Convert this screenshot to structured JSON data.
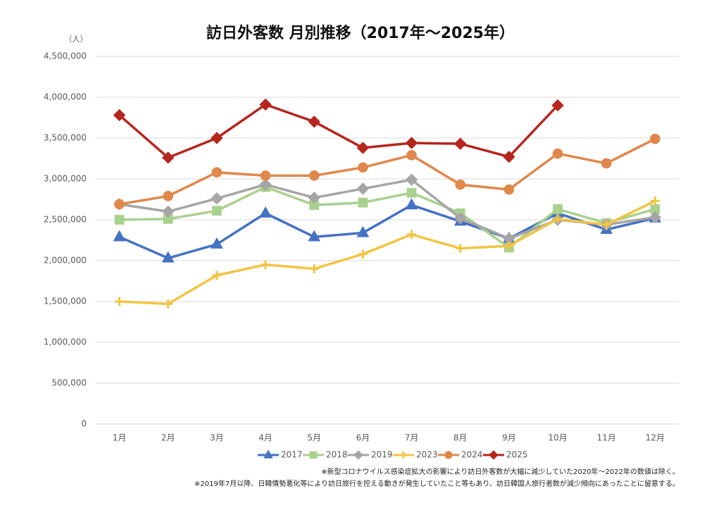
{
  "chart_data": {
    "type": "line",
    "title": "訪日外客数 月別推移（2017年～2025年）",
    "y_axis_label": "（人）",
    "categories": [
      "1月",
      "2月",
      "3月",
      "4月",
      "5月",
      "6月",
      "7月",
      "8月",
      "9月",
      "10月",
      "11月",
      "12月"
    ],
    "series": [
      {
        "name": "2017",
        "color": "#4472c4",
        "marker": "triangle",
        "values": [
          2290000,
          2030000,
          2200000,
          2580000,
          2290000,
          2340000,
          2680000,
          2480000,
          2270000,
          2580000,
          2380000,
          2520000
        ]
      },
      {
        "name": "2018",
        "color": "#a9d18e",
        "marker": "square",
        "values": [
          2500000,
          2510000,
          2610000,
          2900000,
          2680000,
          2710000,
          2830000,
          2580000,
          2160000,
          2630000,
          2460000,
          2630000
        ]
      },
      {
        "name": "2019",
        "color": "#a5a5a5",
        "marker": "diamond",
        "values": [
          2690000,
          2600000,
          2760000,
          2930000,
          2770000,
          2880000,
          2990000,
          2520000,
          2270000,
          2500000,
          2440000,
          2530000
        ]
      },
      {
        "name": "2023",
        "color": "#f2c443",
        "marker": "plus",
        "values": [
          1500000,
          1470000,
          1820000,
          1950000,
          1900000,
          2080000,
          2320000,
          2150000,
          2180000,
          2510000,
          2440000,
          2730000
        ]
      },
      {
        "name": "2024",
        "color": "#e0874b",
        "marker": "circle",
        "values": [
          2690000,
          2790000,
          3080000,
          3040000,
          3040000,
          3140000,
          3290000,
          2930000,
          2870000,
          3310000,
          3190000,
          3490000
        ]
      },
      {
        "name": "2025",
        "color": "#b5261e",
        "marker": "diamond",
        "values": [
          3780000,
          3260000,
          3500000,
          3910000,
          3700000,
          3380000,
          3440000,
          3430000,
          3270000,
          3900000,
          null,
          null
        ]
      }
    ],
    "ylim": [
      0,
      4500000
    ],
    "yticks": [
      0,
      {
        "value": 500000,
        "label": "500,000"
      },
      {
        "value": 1000000,
        "label": "1,000,000"
      },
      {
        "value": 1500000,
        "label": "1,500,000"
      },
      {
        "value": 2000000,
        "label": "2,000,000"
      },
      {
        "value": 2500000,
        "label": "2,500,000"
      },
      {
        "value": 3000000,
        "label": "3,000,000"
      },
      {
        "value": 3500000,
        "label": "3,500,000"
      },
      {
        "value": 4000000,
        "label": "4,000,000"
      },
      {
        "value": 4500000,
        "label": "4,500,000"
      }
    ],
    "grid": true,
    "legend": "bottom",
    "notes": [
      "※新型コロナウイルス感染症拡大の影響により訪日外客数が大幅に減少していた2020年～2022年の数値は除く。",
      "※2019年7月以降、日韓情勢悪化等により訪日旅行を控える動きが発生していたこと等もあり、訪日韓国人旅行者数が減少傾向にあったことに留意する。"
    ]
  }
}
